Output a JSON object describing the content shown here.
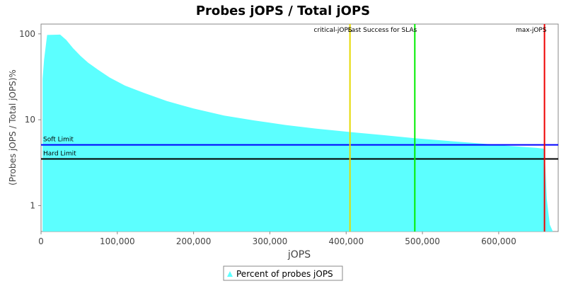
{
  "chart_data": {
    "type": "area",
    "title": "Probes jOPS / Total jOPS",
    "xlabel": "jOPS",
    "ylabel": "(Probes jOPS / Total jOPS)%",
    "xlim": [
      0,
      678000
    ],
    "ylim": [
      0.5,
      130
    ],
    "yscale": "log",
    "xticks": [
      0,
      100000,
      200000,
      300000,
      400000,
      500000,
      600000
    ],
    "xtick_labels": [
      "0",
      "100,000",
      "200,000",
      "300,000",
      "400,000",
      "500,000",
      "600,000"
    ],
    "yticks": [
      1,
      10,
      100
    ],
    "ytick_labels": [
      "1",
      "10",
      "100"
    ],
    "series": [
      {
        "name": "Percent of probes jOPS",
        "color": "#5cffff",
        "x": [
          2000,
          4000,
          8000,
          25000,
          33000,
          42000,
          52000,
          62000,
          75000,
          90000,
          110000,
          135000,
          165000,
          200000,
          240000,
          280000,
          320000,
          360000,
          405000,
          450000,
          490000,
          530000,
          570000,
          610000,
          650000,
          660000,
          663000,
          667000,
          671000
        ],
        "y": [
          30,
          50,
          97,
          98,
          85,
          68,
          55,
          46,
          38,
          31,
          25,
          20.5,
          16.5,
          13.5,
          11.2,
          9.8,
          8.7,
          7.9,
          7.2,
          6.6,
          6.1,
          5.7,
          5.35,
          5.0,
          4.7,
          4.6,
          1.2,
          0.6,
          0.5
        ]
      }
    ],
    "hlines": [
      {
        "label": "Soft Limit",
        "y": 5.1,
        "color": "#0000ff"
      },
      {
        "label": "Hard Limit",
        "y": 3.5,
        "color": "#000000"
      }
    ],
    "vlines": [
      {
        "label": "critical-jOPS",
        "x": 405000,
        "color": "#e6d800"
      },
      {
        "label": "Last Success for SLAs",
        "x": 490000,
        "color": "#00ee00"
      },
      {
        "label": "max-jOPS",
        "x": 660000,
        "color": "#ee0000"
      }
    ],
    "grid": false,
    "legend": "bottom-center"
  }
}
